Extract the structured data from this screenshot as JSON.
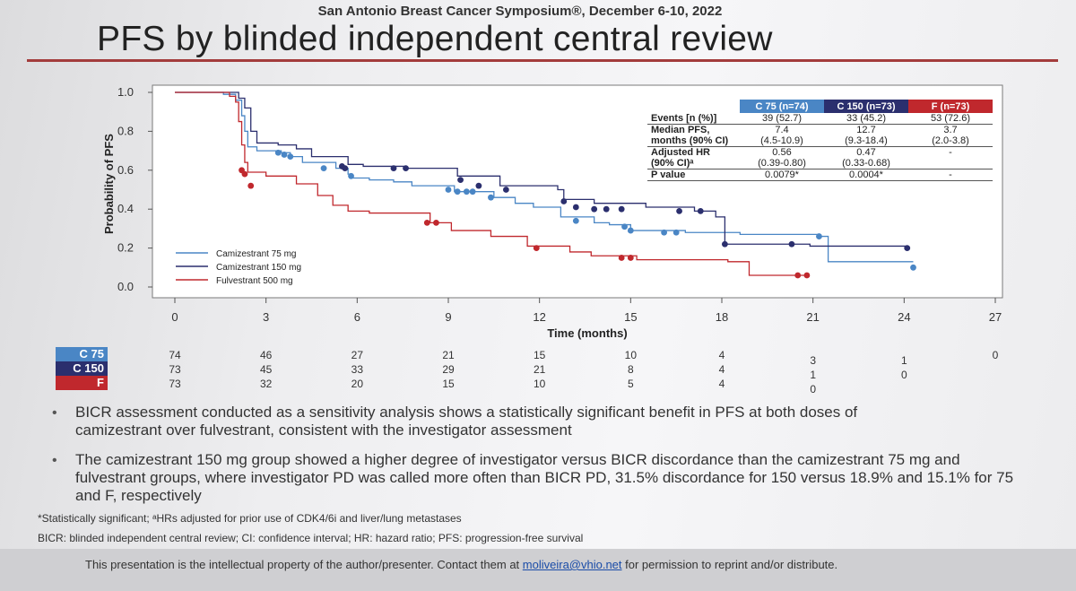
{
  "header": {
    "conference": "San Antonio Breast Cancer Symposium®, December 6-10, 2022",
    "title": "PFS by blinded independent central review"
  },
  "colors": {
    "c75": "#4a86c5",
    "c150": "#2b2f6e",
    "f": "#c0282d"
  },
  "chart_data": {
    "type": "line",
    "xlabel": "Time (months)",
    "ylabel": "Probability of PFS",
    "xlim": [
      0,
      27
    ],
    "ylim": [
      0,
      1
    ],
    "xticks": [
      "0",
      "3",
      "6",
      "9",
      "12",
      "15",
      "18",
      "21",
      "24",
      "27"
    ],
    "yticks": [
      "0.0",
      "0.2",
      "0.4",
      "0.6",
      "0.8",
      "1.0"
    ],
    "legend_position": "bottom-left",
    "series": [
      {
        "name": "Camizestrant 75 mg",
        "key": "c75",
        "points": [
          [
            0,
            1
          ],
          [
            1.6,
            0.99
          ],
          [
            2.0,
            0.96
          ],
          [
            2.2,
            0.88
          ],
          [
            2.3,
            0.8
          ],
          [
            2.4,
            0.72
          ],
          [
            2.7,
            0.7
          ],
          [
            3.5,
            0.69
          ],
          [
            3.8,
            0.67
          ],
          [
            4.2,
            0.64
          ],
          [
            5.3,
            0.61
          ],
          [
            5.7,
            0.58
          ],
          [
            5.8,
            0.56
          ],
          [
            6.4,
            0.55
          ],
          [
            7.2,
            0.54
          ],
          [
            7.8,
            0.52
          ],
          [
            9.2,
            0.49
          ],
          [
            10.5,
            0.46
          ],
          [
            11.2,
            0.43
          ],
          [
            11.8,
            0.41
          ],
          [
            12.7,
            0.36
          ],
          [
            13.8,
            0.33
          ],
          [
            14.3,
            0.32
          ],
          [
            15.0,
            0.29
          ],
          [
            16.8,
            0.28
          ],
          [
            17.9,
            0.28
          ],
          [
            18.6,
            0.27
          ],
          [
            21.2,
            0.26
          ],
          [
            21.5,
            0.13
          ],
          [
            24.3,
            0.13
          ]
        ],
        "censor": [
          [
            3.4,
            0.69
          ],
          [
            3.6,
            0.68
          ],
          [
            3.8,
            0.67
          ],
          [
            4.9,
            0.61
          ],
          [
            5.8,
            0.57
          ],
          [
            9.0,
            0.5
          ],
          [
            9.3,
            0.49
          ],
          [
            9.6,
            0.49
          ],
          [
            9.8,
            0.49
          ],
          [
            10.4,
            0.46
          ],
          [
            13.2,
            0.34
          ],
          [
            14.8,
            0.31
          ],
          [
            15.0,
            0.29
          ],
          [
            16.1,
            0.28
          ],
          [
            16.5,
            0.28
          ],
          [
            21.2,
            0.26
          ],
          [
            24.3,
            0.1
          ]
        ]
      },
      {
        "name": "Camizestrant 150 mg",
        "key": "c150",
        "points": [
          [
            0,
            1
          ],
          [
            2.1,
            0.97
          ],
          [
            2.3,
            0.92
          ],
          [
            2.5,
            0.8
          ],
          [
            2.7,
            0.74
          ],
          [
            3.4,
            0.73
          ],
          [
            4.0,
            0.71
          ],
          [
            4.5,
            0.67
          ],
          [
            5.7,
            0.63
          ],
          [
            6.2,
            0.62
          ],
          [
            7.6,
            0.61
          ],
          [
            9.3,
            0.57
          ],
          [
            10.7,
            0.52
          ],
          [
            12.6,
            0.5
          ],
          [
            12.8,
            0.45
          ],
          [
            13.8,
            0.43
          ],
          [
            15.5,
            0.41
          ],
          [
            17.1,
            0.39
          ],
          [
            17.8,
            0.36
          ],
          [
            18.1,
            0.22
          ],
          [
            20.9,
            0.21
          ],
          [
            24.1,
            0.21
          ]
        ],
        "censor": [
          [
            5.5,
            0.62
          ],
          [
            5.6,
            0.61
          ],
          [
            7.2,
            0.61
          ],
          [
            7.6,
            0.61
          ],
          [
            9.4,
            0.55
          ],
          [
            10.0,
            0.52
          ],
          [
            10.9,
            0.5
          ],
          [
            12.8,
            0.44
          ],
          [
            13.2,
            0.41
          ],
          [
            13.8,
            0.4
          ],
          [
            14.2,
            0.4
          ],
          [
            14.7,
            0.4
          ],
          [
            16.6,
            0.39
          ],
          [
            17.3,
            0.39
          ],
          [
            18.1,
            0.22
          ],
          [
            20.3,
            0.22
          ],
          [
            24.1,
            0.2
          ]
        ]
      },
      {
        "name": "Fulvestrant 500 mg",
        "key": "f",
        "points": [
          [
            0,
            1
          ],
          [
            1.8,
            0.98
          ],
          [
            2.0,
            0.95
          ],
          [
            2.1,
            0.85
          ],
          [
            2.2,
            0.73
          ],
          [
            2.3,
            0.64
          ],
          [
            2.4,
            0.59
          ],
          [
            3.0,
            0.57
          ],
          [
            4.0,
            0.53
          ],
          [
            4.7,
            0.47
          ],
          [
            5.2,
            0.42
          ],
          [
            5.7,
            0.39
          ],
          [
            6.4,
            0.38
          ],
          [
            8.4,
            0.33
          ],
          [
            9.1,
            0.29
          ],
          [
            10.4,
            0.26
          ],
          [
            11.6,
            0.21
          ],
          [
            13.0,
            0.18
          ],
          [
            13.7,
            0.16
          ],
          [
            15.2,
            0.14
          ],
          [
            18.2,
            0.13
          ],
          [
            18.9,
            0.06
          ],
          [
            20.8,
            0.06
          ]
        ],
        "censor": [
          [
            2.2,
            0.6
          ],
          [
            2.3,
            0.58
          ],
          [
            2.5,
            0.52
          ],
          [
            8.3,
            0.33
          ],
          [
            8.6,
            0.33
          ],
          [
            11.9,
            0.2
          ],
          [
            14.7,
            0.15
          ],
          [
            15.0,
            0.15
          ],
          [
            20.5,
            0.06
          ],
          [
            20.8,
            0.06
          ]
        ]
      }
    ],
    "summary_table": {
      "headers": [
        "C 75 (n=74)",
        "C 150 (n=73)",
        "F (n=73)"
      ],
      "rows": [
        {
          "label": [
            "Events [n (%)]"
          ],
          "values": [
            [
              "39 (52.7)"
            ],
            [
              "33 (45.2)"
            ],
            [
              "53 (72.6)"
            ]
          ]
        },
        {
          "label": [
            "Median PFS,",
            "months (90% CI)"
          ],
          "values": [
            [
              "7.4",
              "(4.5-10.9)"
            ],
            [
              "12.7",
              "(9.3-18.4)"
            ],
            [
              "3.7",
              "(2.0-3.8)"
            ]
          ]
        },
        {
          "label": [
            "Adjusted HR",
            "(90% CI)ᵃ"
          ],
          "values": [
            [
              "0.56",
              "(0.39-0.80)"
            ],
            [
              "0.47",
              "(0.33-0.68)"
            ],
            [
              "-"
            ]
          ]
        },
        {
          "label": [
            "P value"
          ],
          "values": [
            [
              "0.0079*"
            ],
            [
              "0.0004*"
            ],
            [
              "-"
            ]
          ]
        }
      ]
    },
    "at_risk": {
      "labels": [
        "C 75",
        "C 150",
        "F"
      ],
      "c75": [
        "74",
        "46",
        "27",
        "21",
        "15",
        "10",
        "4",
        "3",
        "1",
        "0"
      ],
      "c150": [
        "73",
        "45",
        "33",
        "29",
        "21",
        "8",
        "4",
        "1",
        "0"
      ],
      "f": [
        "73",
        "32",
        "20",
        "15",
        "10",
        "5",
        "4",
        "0"
      ]
    }
  },
  "bullets": [
    "BICR assessment conducted as a sensitivity analysis shows a statistically significant benefit in PFS at both doses of camizestrant over fulvestrant, consistent with the investigator assessment",
    "The camizestrant 150 mg group showed a higher degree of investigator versus BICR discordance than the camizestrant 75 mg and fulvestrant groups, where investigator PD was called more often than BICR PD, 31.5% discordance for 150 versus 18.9% and 15.1% for 75 and F, respectively"
  ],
  "footnotes": {
    "significance": "*Statistically significant; ᵃHRs adjusted for prior use of CDK4/6i and liver/lung metastases",
    "abbreviations": "BICR: blinded independent central review; CI: confidence interval; HR: hazard ratio; PFS: progression-free survival"
  },
  "disclaimer": {
    "before": "This presentation is the intellectual property of the author/presenter. Contact them at ",
    "email": "moliveira@vhio.net",
    "after": " for permission to reprint and/or distribute."
  }
}
